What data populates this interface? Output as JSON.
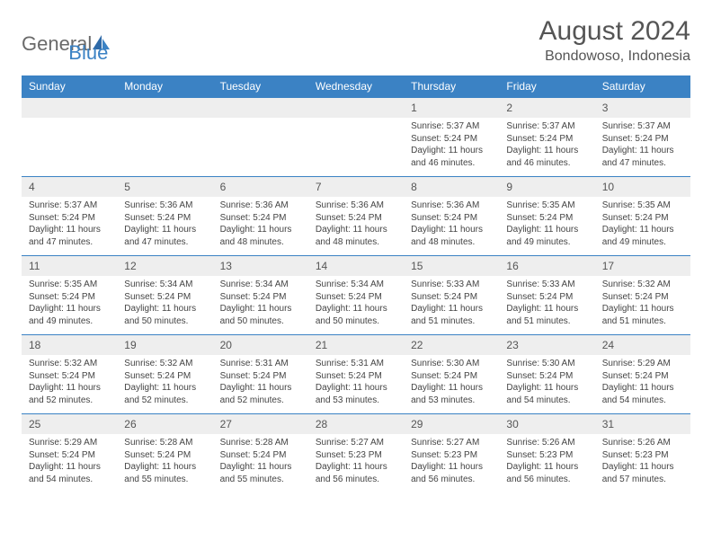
{
  "brand": {
    "text1": "General",
    "text2": "Blue"
  },
  "title": "August 2024",
  "location": "Bondowoso, Indonesia",
  "colors": {
    "header_bg": "#3b82c4",
    "header_fg": "#ffffff",
    "daynum_bg": "#eeeeee",
    "rule": "#3b82c4",
    "text": "#444444",
    "title": "#555555"
  },
  "typography": {
    "title_fontsize": 30,
    "location_fontsize": 16,
    "weekday_fontsize": 12,
    "daynum_fontsize": 12,
    "body_fontsize": 10
  },
  "weekdays": [
    "Sunday",
    "Monday",
    "Tuesday",
    "Wednesday",
    "Thursday",
    "Friday",
    "Saturday"
  ],
  "weeks": [
    [
      null,
      null,
      null,
      null,
      {
        "n": "1",
        "sunrise": "5:37 AM",
        "sunset": "5:24 PM",
        "daylight": "11 hours and 46 minutes."
      },
      {
        "n": "2",
        "sunrise": "5:37 AM",
        "sunset": "5:24 PM",
        "daylight": "11 hours and 46 minutes."
      },
      {
        "n": "3",
        "sunrise": "5:37 AM",
        "sunset": "5:24 PM",
        "daylight": "11 hours and 47 minutes."
      }
    ],
    [
      {
        "n": "4",
        "sunrise": "5:37 AM",
        "sunset": "5:24 PM",
        "daylight": "11 hours and 47 minutes."
      },
      {
        "n": "5",
        "sunrise": "5:36 AM",
        "sunset": "5:24 PM",
        "daylight": "11 hours and 47 minutes."
      },
      {
        "n": "6",
        "sunrise": "5:36 AM",
        "sunset": "5:24 PM",
        "daylight": "11 hours and 48 minutes."
      },
      {
        "n": "7",
        "sunrise": "5:36 AM",
        "sunset": "5:24 PM",
        "daylight": "11 hours and 48 minutes."
      },
      {
        "n": "8",
        "sunrise": "5:36 AM",
        "sunset": "5:24 PM",
        "daylight": "11 hours and 48 minutes."
      },
      {
        "n": "9",
        "sunrise": "5:35 AM",
        "sunset": "5:24 PM",
        "daylight": "11 hours and 49 minutes."
      },
      {
        "n": "10",
        "sunrise": "5:35 AM",
        "sunset": "5:24 PM",
        "daylight": "11 hours and 49 minutes."
      }
    ],
    [
      {
        "n": "11",
        "sunrise": "5:35 AM",
        "sunset": "5:24 PM",
        "daylight": "11 hours and 49 minutes."
      },
      {
        "n": "12",
        "sunrise": "5:34 AM",
        "sunset": "5:24 PM",
        "daylight": "11 hours and 50 minutes."
      },
      {
        "n": "13",
        "sunrise": "5:34 AM",
        "sunset": "5:24 PM",
        "daylight": "11 hours and 50 minutes."
      },
      {
        "n": "14",
        "sunrise": "5:34 AM",
        "sunset": "5:24 PM",
        "daylight": "11 hours and 50 minutes."
      },
      {
        "n": "15",
        "sunrise": "5:33 AM",
        "sunset": "5:24 PM",
        "daylight": "11 hours and 51 minutes."
      },
      {
        "n": "16",
        "sunrise": "5:33 AM",
        "sunset": "5:24 PM",
        "daylight": "11 hours and 51 minutes."
      },
      {
        "n": "17",
        "sunrise": "5:32 AM",
        "sunset": "5:24 PM",
        "daylight": "11 hours and 51 minutes."
      }
    ],
    [
      {
        "n": "18",
        "sunrise": "5:32 AM",
        "sunset": "5:24 PM",
        "daylight": "11 hours and 52 minutes."
      },
      {
        "n": "19",
        "sunrise": "5:32 AM",
        "sunset": "5:24 PM",
        "daylight": "11 hours and 52 minutes."
      },
      {
        "n": "20",
        "sunrise": "5:31 AM",
        "sunset": "5:24 PM",
        "daylight": "11 hours and 52 minutes."
      },
      {
        "n": "21",
        "sunrise": "5:31 AM",
        "sunset": "5:24 PM",
        "daylight": "11 hours and 53 minutes."
      },
      {
        "n": "22",
        "sunrise": "5:30 AM",
        "sunset": "5:24 PM",
        "daylight": "11 hours and 53 minutes."
      },
      {
        "n": "23",
        "sunrise": "5:30 AM",
        "sunset": "5:24 PM",
        "daylight": "11 hours and 54 minutes."
      },
      {
        "n": "24",
        "sunrise": "5:29 AM",
        "sunset": "5:24 PM",
        "daylight": "11 hours and 54 minutes."
      }
    ],
    [
      {
        "n": "25",
        "sunrise": "5:29 AM",
        "sunset": "5:24 PM",
        "daylight": "11 hours and 54 minutes."
      },
      {
        "n": "26",
        "sunrise": "5:28 AM",
        "sunset": "5:24 PM",
        "daylight": "11 hours and 55 minutes."
      },
      {
        "n": "27",
        "sunrise": "5:28 AM",
        "sunset": "5:24 PM",
        "daylight": "11 hours and 55 minutes."
      },
      {
        "n": "28",
        "sunrise": "5:27 AM",
        "sunset": "5:23 PM",
        "daylight": "11 hours and 56 minutes."
      },
      {
        "n": "29",
        "sunrise": "5:27 AM",
        "sunset": "5:23 PM",
        "daylight": "11 hours and 56 minutes."
      },
      {
        "n": "30",
        "sunrise": "5:26 AM",
        "sunset": "5:23 PM",
        "daylight": "11 hours and 56 minutes."
      },
      {
        "n": "31",
        "sunrise": "5:26 AM",
        "sunset": "5:23 PM",
        "daylight": "11 hours and 57 minutes."
      }
    ]
  ]
}
